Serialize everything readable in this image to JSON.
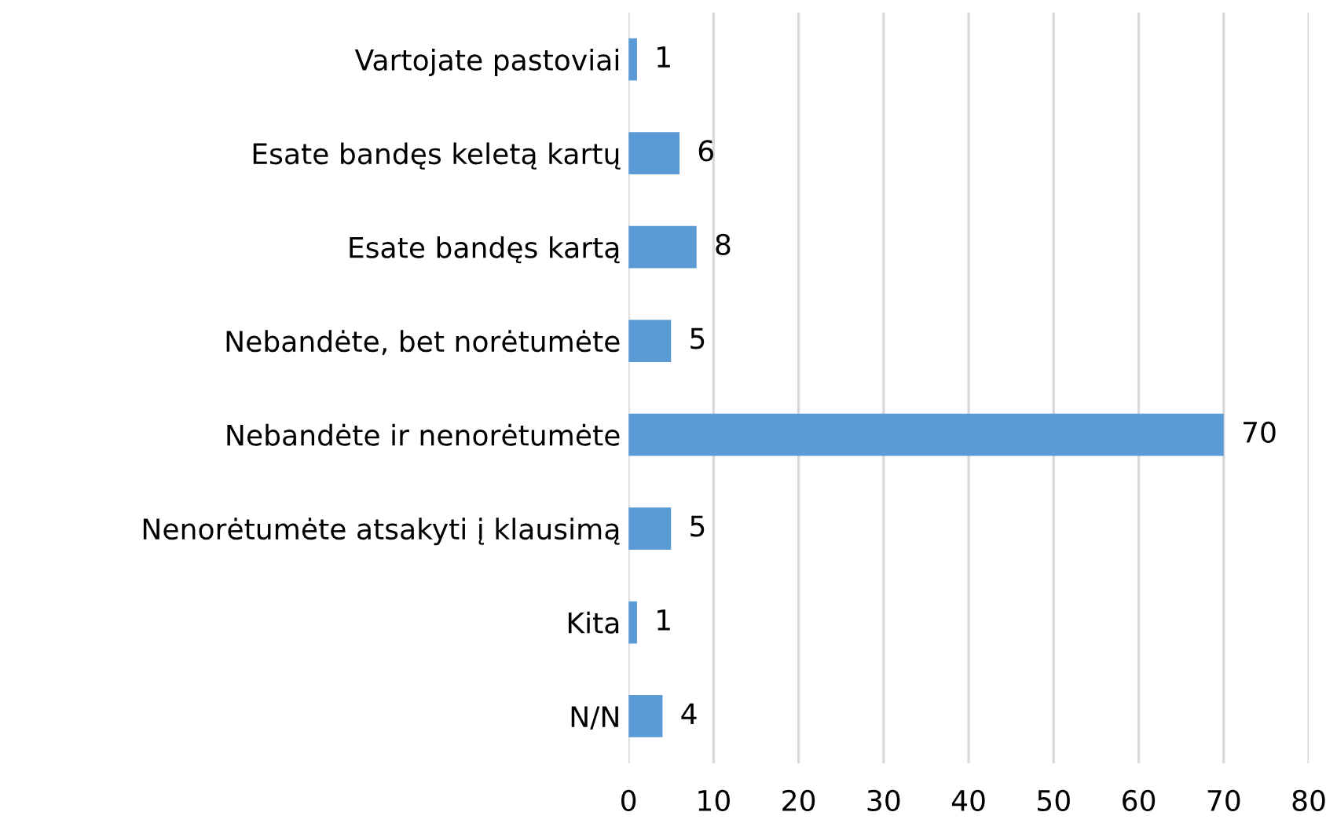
{
  "chart_data": {
    "type": "bar",
    "orientation": "horizontal",
    "categories": [
      "Vartojate pastoviai",
      "Esate bandęs keletą kartų",
      "Esate bandęs kartą",
      "Nebandėte, bet norėtumėte",
      "Nebandėte ir nenorėtumėte",
      "Nenorėtumėte atsakyti į klausimą",
      "Kita",
      "N/N"
    ],
    "values": [
      1,
      6,
      8,
      5,
      70,
      5,
      1,
      4
    ],
    "color": "#5b9bd5",
    "xlim": [
      0,
      80
    ],
    "xticks": [
      0,
      10,
      20,
      30,
      40,
      50,
      60,
      70,
      80
    ],
    "grid": "x",
    "data_labels": true,
    "legend": false
  }
}
